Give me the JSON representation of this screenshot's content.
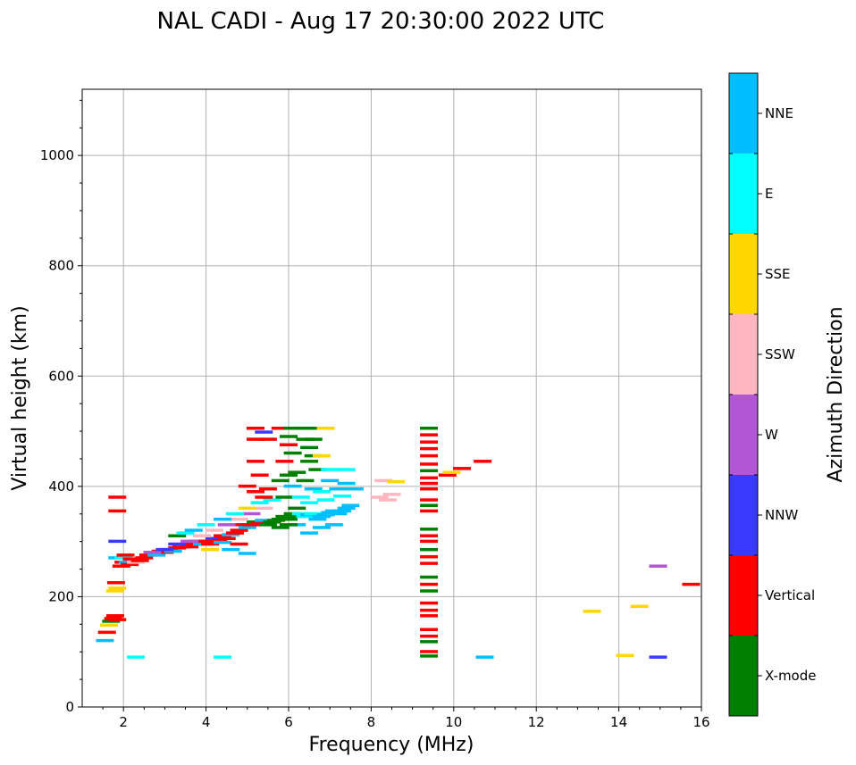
{
  "chart_data": {
    "type": "scatter",
    "title": "NAL CADI - Aug 17 20:30:00 2022 UTC",
    "xlabel": "Frequency (MHz)",
    "ylabel": "Virtual height (km)",
    "xlim": [
      1,
      16
    ],
    "ylim": [
      0,
      1120
    ],
    "xticks": [
      2,
      4,
      6,
      8,
      10,
      12,
      14,
      16
    ],
    "yticks": [
      0,
      200,
      400,
      600,
      800,
      1000
    ],
    "grid": true,
    "colorbar_label": "Azimuth Direction",
    "categories": [
      {
        "name": "X-mode",
        "color": "#008000"
      },
      {
        "name": "Vertical",
        "color": "#ff0000"
      },
      {
        "name": "NNW",
        "color": "#3a3aff"
      },
      {
        "name": "W",
        "color": "#b256d6"
      },
      {
        "name": "SSW",
        "color": "#ffb6c1"
      },
      {
        "name": "SSE",
        "color": "#ffd700"
      },
      {
        "name": "E",
        "color": "#00ffff"
      },
      {
        "name": "NNE",
        "color": "#00bfff"
      }
    ],
    "points": [
      [
        1.55,
        120,
        "NNE"
      ],
      [
        1.6,
        135,
        "Vertical"
      ],
      [
        1.65,
        148,
        "SSE"
      ],
      [
        1.7,
        155,
        "X-mode"
      ],
      [
        1.75,
        160,
        "Vertical"
      ],
      [
        1.8,
        165,
        "Vertical"
      ],
      [
        1.85,
        158,
        "Vertical"
      ],
      [
        1.8,
        210,
        "SSE"
      ],
      [
        1.85,
        215,
        "SSE"
      ],
      [
        1.82,
        225,
        "Vertical"
      ],
      [
        1.85,
        270,
        "NNE"
      ],
      [
        1.85,
        300,
        "NNW"
      ],
      [
        1.85,
        355,
        "Vertical"
      ],
      [
        1.85,
        380,
        "Vertical"
      ],
      [
        1.95,
        255,
        "Vertical"
      ],
      [
        2.0,
        262,
        "Vertical"
      ],
      [
        2.0,
        270,
        "E"
      ],
      [
        2.05,
        275,
        "Vertical"
      ],
      [
        2.1,
        262,
        "NNE"
      ],
      [
        2.15,
        258,
        "Vertical"
      ],
      [
        2.2,
        268,
        "Vertical"
      ],
      [
        2.3,
        262,
        "SSW"
      ],
      [
        2.4,
        265,
        "Vertical"
      ],
      [
        2.5,
        270,
        "Vertical"
      ],
      [
        2.6,
        275,
        "Vertical"
      ],
      [
        2.7,
        278,
        "Vertical"
      ],
      [
        2.8,
        275,
        "NNE"
      ],
      [
        2.9,
        282,
        "Vertical"
      ],
      [
        3.0,
        280,
        "Vertical"
      ],
      [
        3.1,
        285,
        "Vertical"
      ],
      [
        3.2,
        282,
        "NNE"
      ],
      [
        3.3,
        288,
        "Vertical"
      ],
      [
        3.4,
        290,
        "Vertical"
      ],
      [
        3.5,
        295,
        "SSW"
      ],
      [
        3.6,
        290,
        "Vertical"
      ],
      [
        3.7,
        295,
        "Vertical"
      ],
      [
        3.8,
        300,
        "Vertical"
      ],
      [
        3.9,
        295,
        "NNE"
      ],
      [
        4.0,
        300,
        "Vertical"
      ],
      [
        4.1,
        295,
        "Vertical"
      ],
      [
        4.2,
        305,
        "NNW"
      ],
      [
        4.3,
        300,
        "Vertical"
      ],
      [
        4.4,
        310,
        "Vertical"
      ],
      [
        4.5,
        305,
        "Vertical"
      ],
      [
        4.6,
        312,
        "NNE"
      ],
      [
        4.7,
        315,
        "Vertical"
      ],
      [
        4.8,
        320,
        "Vertical"
      ],
      [
        4.9,
        330,
        "Vertical"
      ],
      [
        5.0,
        325,
        "NNE"
      ],
      [
        5.1,
        330,
        "Vertical"
      ],
      [
        5.2,
        335,
        "X-mode"
      ],
      [
        5.3,
        332,
        "Vertical"
      ],
      [
        5.4,
        338,
        "NNE"
      ],
      [
        5.5,
        330,
        "X-mode"
      ],
      [
        5.6,
        335,
        "X-mode"
      ],
      [
        5.7,
        338,
        "X-mode"
      ],
      [
        5.8,
        340,
        "X-mode"
      ],
      [
        5.9,
        345,
        "X-mode"
      ],
      [
        6.0,
        340,
        "X-mode"
      ],
      [
        6.1,
        350,
        "X-mode"
      ],
      [
        6.2,
        345,
        "X-mode"
      ],
      [
        6.3,
        350,
        "E"
      ],
      [
        6.4,
        345,
        "E"
      ],
      [
        6.5,
        348,
        "NNE"
      ],
      [
        6.6,
        350,
        "E"
      ],
      [
        6.7,
        340,
        "NNE"
      ],
      [
        6.8,
        345,
        "NNE"
      ],
      [
        6.9,
        348,
        "NNE"
      ],
      [
        7.0,
        352,
        "NNE"
      ],
      [
        7.1,
        355,
        "NNE"
      ],
      [
        7.2,
        350,
        "NNE"
      ],
      [
        7.3,
        355,
        "NNE"
      ],
      [
        7.4,
        360,
        "NNE"
      ],
      [
        7.5,
        365,
        "NNE"
      ],
      [
        2.7,
        280,
        "W"
      ],
      [
        3.0,
        285,
        "NNW"
      ],
      [
        3.3,
        295,
        "NNW"
      ],
      [
        3.6,
        300,
        "W"
      ],
      [
        3.9,
        310,
        "SSW"
      ],
      [
        4.2,
        320,
        "SSW"
      ],
      [
        4.5,
        330,
        "W"
      ],
      [
        4.8,
        340,
        "SSW"
      ],
      [
        5.1,
        350,
        "W"
      ],
      [
        5.4,
        360,
        "SSW"
      ],
      [
        3.3,
        310,
        "X-mode"
      ],
      [
        3.5,
        315,
        "E"
      ],
      [
        3.7,
        320,
        "NNE"
      ],
      [
        4.0,
        330,
        "E"
      ],
      [
        4.4,
        340,
        "NNE"
      ],
      [
        4.7,
        350,
        "E"
      ],
      [
        5.0,
        360,
        "SSE"
      ],
      [
        5.3,
        370,
        "E"
      ],
      [
        5.6,
        375,
        "E"
      ],
      [
        5.9,
        380,
        "X-mode"
      ],
      [
        4.6,
        285,
        "NNE"
      ],
      [
        5.0,
        278,
        "NNE"
      ],
      [
        4.1,
        285,
        "SSE"
      ],
      [
        4.4,
        298,
        "NNE"
      ],
      [
        4.8,
        295,
        "Vertical"
      ],
      [
        5.0,
        400,
        "Vertical"
      ],
      [
        5.2,
        390,
        "Vertical"
      ],
      [
        5.3,
        420,
        "Vertical"
      ],
      [
        5.5,
        395,
        "Vertical"
      ],
      [
        5.4,
        380,
        "Vertical"
      ],
      [
        5.2,
        485,
        "Vertical"
      ],
      [
        5.2,
        505,
        "Vertical"
      ],
      [
        5.4,
        498,
        "NNW"
      ],
      [
        5.5,
        485,
        "Vertical"
      ],
      [
        5.2,
        445,
        "Vertical"
      ],
      [
        5.8,
        505,
        "Vertical"
      ],
      [
        6.0,
        490,
        "X-mode"
      ],
      [
        6.0,
        475,
        "Vertical"
      ],
      [
        6.1,
        505,
        "X-mode"
      ],
      [
        6.1,
        460,
        "X-mode"
      ],
      [
        5.9,
        445,
        "Vertical"
      ],
      [
        6.0,
        420,
        "X-mode"
      ],
      [
        6.2,
        425,
        "X-mode"
      ],
      [
        5.8,
        410,
        "X-mode"
      ],
      [
        6.1,
        400,
        "NNE"
      ],
      [
        6.3,
        505,
        "X-mode"
      ],
      [
        6.4,
        485,
        "X-mode"
      ],
      [
        6.5,
        470,
        "X-mode"
      ],
      [
        6.6,
        505,
        "X-mode"
      ],
      [
        6.6,
        485,
        "X-mode"
      ],
      [
        6.6,
        455,
        "X-mode"
      ],
      [
        6.5,
        445,
        "X-mode"
      ],
      [
        6.7,
        430,
        "X-mode"
      ],
      [
        6.8,
        455,
        "SSE"
      ],
      [
        6.9,
        505,
        "SSE"
      ],
      [
        6.4,
        410,
        "X-mode"
      ],
      [
        6.6,
        395,
        "NNE"
      ],
      [
        6.8,
        390,
        "E"
      ],
      [
        7.0,
        410,
        "NNE"
      ],
      [
        6.9,
        375,
        "E"
      ],
      [
        7.2,
        395,
        "NNE"
      ],
      [
        7.3,
        382,
        "E"
      ],
      [
        7.4,
        405,
        "NNE"
      ],
      [
        7.6,
        395,
        "NNE"
      ],
      [
        7.4,
        430,
        "E"
      ],
      [
        7.0,
        430,
        "E"
      ],
      [
        6.3,
        380,
        "E"
      ],
      [
        6.5,
        370,
        "E"
      ],
      [
        6.2,
        330,
        "NNE"
      ],
      [
        6.5,
        315,
        "NNE"
      ],
      [
        6.8,
        325,
        "NNE"
      ],
      [
        7.1,
        330,
        "NNE"
      ],
      [
        6.2,
        360,
        "X-mode"
      ],
      [
        6.0,
        330,
        "X-mode"
      ],
      [
        5.8,
        325,
        "X-mode"
      ],
      [
        8.2,
        380,
        "SSW"
      ],
      [
        8.4,
        375,
        "SSW"
      ],
      [
        8.5,
        385,
        "SSW"
      ],
      [
        8.3,
        410,
        "SSW"
      ],
      [
        8.6,
        408,
        "SSE"
      ],
      [
        9.85,
        420,
        "Vertical"
      ],
      [
        9.95,
        425,
        "SSE"
      ],
      [
        10.2,
        432,
        "Vertical"
      ],
      [
        10.7,
        445,
        "Vertical"
      ],
      [
        9.4,
        505,
        "X-mode"
      ],
      [
        9.4,
        493,
        "Vertical"
      ],
      [
        9.4,
        480,
        "Vertical"
      ],
      [
        9.4,
        468,
        "Vertical"
      ],
      [
        9.4,
        455,
        "Vertical"
      ],
      [
        9.4,
        440,
        "Vertical"
      ],
      [
        9.4,
        428,
        "X-mode"
      ],
      [
        9.4,
        415,
        "Vertical"
      ],
      [
        9.4,
        405,
        "Vertical"
      ],
      [
        9.4,
        395,
        "Vertical"
      ],
      [
        9.4,
        375,
        "Vertical"
      ],
      [
        9.4,
        365,
        "X-mode"
      ],
      [
        9.4,
        355,
        "Vertical"
      ],
      [
        9.4,
        322,
        "X-mode"
      ],
      [
        9.4,
        310,
        "Vertical"
      ],
      [
        9.4,
        300,
        "Vertical"
      ],
      [
        9.4,
        285,
        "X-mode"
      ],
      [
        9.4,
        272,
        "Vertical"
      ],
      [
        9.4,
        260,
        "Vertical"
      ],
      [
        9.4,
        235,
        "X-mode"
      ],
      [
        9.4,
        222,
        "Vertical"
      ],
      [
        9.4,
        210,
        "X-mode"
      ],
      [
        9.4,
        188,
        "Vertical"
      ],
      [
        9.4,
        175,
        "Vertical"
      ],
      [
        9.4,
        165,
        "Vertical"
      ],
      [
        9.4,
        140,
        "Vertical"
      ],
      [
        9.4,
        128,
        "Vertical"
      ],
      [
        9.4,
        118,
        "X-mode"
      ],
      [
        9.4,
        100,
        "Vertical"
      ],
      [
        9.4,
        92,
        "X-mode"
      ],
      [
        2.3,
        90,
        "E"
      ],
      [
        4.4,
        90,
        "E"
      ],
      [
        10.75,
        90,
        "NNE"
      ],
      [
        14.15,
        93,
        "SSE"
      ],
      [
        14.95,
        90,
        "NNW"
      ],
      [
        13.35,
        173,
        "SSE"
      ],
      [
        14.5,
        182,
        "SSE"
      ],
      [
        14.95,
        255,
        "W"
      ],
      [
        15.75,
        222,
        "Vertical"
      ]
    ]
  }
}
